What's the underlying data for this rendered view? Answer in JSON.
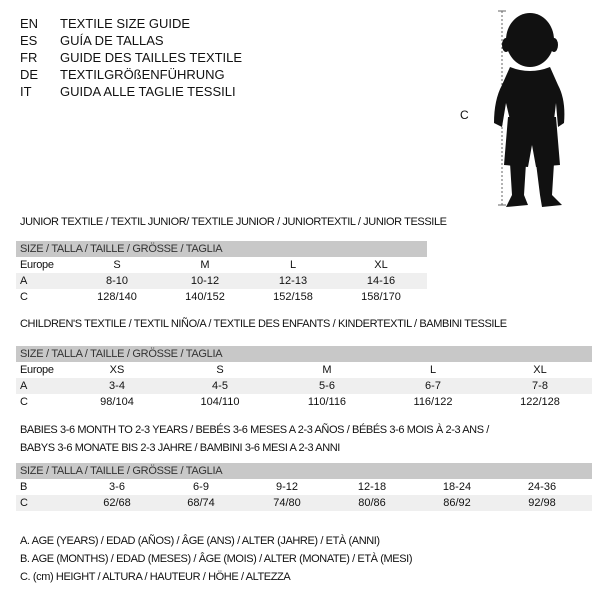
{
  "languages": [
    {
      "code": "EN",
      "title": "TEXTILE SIZE GUIDE"
    },
    {
      "code": "ES",
      "title": "GUÍA DE TALLAS"
    },
    {
      "code": "FR",
      "title": "GUIDE DES TAILLES TEXTILE"
    },
    {
      "code": "DE",
      "title": "TEXTILGRÖßENFÜHRUNG"
    },
    {
      "code": "IT",
      "title": "GUIDA ALLE TAGLIE TESSILI"
    }
  ],
  "figure": {
    "measure_label": "C"
  },
  "size_header": "SIZE / TALLA / TAILLE / GRÖSSE / TAGLIA",
  "junior": {
    "heading": "JUNIOR TEXTILE / TEXTIL JUNIOR/ TEXTILE JUNIOR / JUNIORTEXTIL / JUNIOR TESSILE",
    "rows": [
      {
        "label": "Europe",
        "values": [
          "S",
          "M",
          "L",
          "XL"
        ]
      },
      {
        "label": "A",
        "values": [
          "8-10",
          "10-12",
          "12-13",
          "14-16"
        ]
      },
      {
        "label": "C",
        "values": [
          "128/140",
          "140/152",
          "152/158",
          "158/170"
        ]
      }
    ]
  },
  "children": {
    "heading": "CHILDREN'S TEXTILE / TEXTIL NIÑO/A / TEXTILE DES ENFANTS / KINDERTEXTIL / BAMBINI TESSILE",
    "rows": [
      {
        "label": "Europe",
        "values": [
          "XS",
          "S",
          "M",
          "L",
          "XL"
        ]
      },
      {
        "label": "A",
        "values": [
          "3-4",
          "4-5",
          "5-6",
          "6-7",
          "7-8"
        ]
      },
      {
        "label": "C",
        "values": [
          "98/104",
          "104/110",
          "110/116",
          "116/122",
          "122/128"
        ]
      }
    ]
  },
  "babies": {
    "heading_line1": "BABIES 3-6 MONTH TO 2-3 YEARS / BEBÉS 3-6 MESES A 2-3 AÑOS / BÉBÉS 3-6 MOIS À 2-3 ANS /",
    "heading_line2": "BABYS 3-6 MONATE BIS 2-3 JAHRE / BAMBINI 3-6 MESI A 2-3 ANNI",
    "rows": [
      {
        "label": "B",
        "values": [
          "3-6",
          "6-9",
          "9-12",
          "12-18",
          "18-24",
          "24-36"
        ]
      },
      {
        "label": "C",
        "values": [
          "62/68",
          "68/74",
          "74/80",
          "80/86",
          "86/92",
          "92/98"
        ]
      }
    ]
  },
  "legend": [
    "A. AGE (YEARS) / EDAD (AÑOS) / ÂGE (ANS) / ALTER (JAHRE) / ETÀ (ANNI)",
    "B. AGE (MONTHS) / EDAD (MESES) / ÂGE (MOIS) / ALTER (MONATE) / ETÀ (MESI)",
    "C. (cm) HEIGHT / ALTURA / HAUTEUR / HÖHE / ALTEZZA"
  ]
}
